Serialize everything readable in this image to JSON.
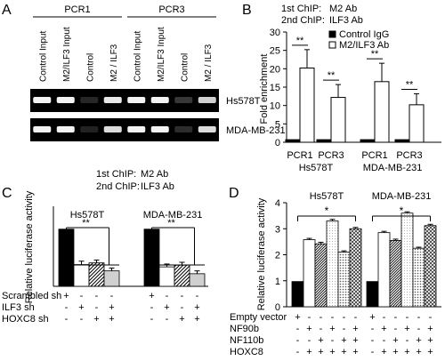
{
  "panels": {
    "A": {
      "letter": "A",
      "groups": [
        {
          "label": "PCR1"
        },
        {
          "label": "PCR3"
        }
      ],
      "lanes": [
        {
          "label": "Control Input"
        },
        {
          "label": "M2/ILF3 Input"
        },
        {
          "label": "Control"
        },
        {
          "label": "M2 / ILF3"
        },
        {
          "label": "Control Input"
        },
        {
          "label": "M2/ILF3 Input"
        },
        {
          "label": "Control"
        },
        {
          "label": "M2 / ILF3"
        }
      ],
      "rows": [
        {
          "label": "Hs578T",
          "intensity": [
            0.95,
            0.95,
            0.08,
            0.9,
            0.95,
            0.95,
            0.15,
            0.8
          ]
        },
        {
          "label": "MDA-MB-231",
          "intensity": [
            0.95,
            0.95,
            0.06,
            0.85,
            0.95,
            0.95,
            0.1,
            0.85
          ]
        }
      ],
      "chip_notes": [
        {
          "key": "1st ChIP:",
          "value": "M2 Ab"
        },
        {
          "key": "2nd ChIP:",
          "value": "ILF3 Ab"
        }
      ]
    },
    "B": {
      "letter": "B"
    },
    "C": {
      "letter": "C"
    },
    "D": {
      "letter": "D"
    }
  },
  "chart_data": [
    {
      "panel": "B",
      "type": "bar",
      "notes": [
        {
          "key": "1st ChIP:",
          "value": "M2 Ab"
        },
        {
          "key": "2nd ChIP:",
          "value": "ILF3 Ab"
        }
      ],
      "ylabel": "Fold enrichment",
      "ylim": [
        0,
        30
      ],
      "yticks": [
        0,
        5,
        10,
        15,
        20,
        25,
        30
      ],
      "legend": [
        "Control IgG",
        "M2/ILF3 Ab"
      ],
      "categories": [
        "PCR1",
        "PCR3",
        "PCR1",
        "PCR3"
      ],
      "cell_lines": [
        "Hs578T",
        "MDA-MB-231"
      ],
      "series": [
        {
          "name": "Control IgG",
          "color": "#000000",
          "values": [
            0.7,
            0.7,
            0.7,
            0.7
          ],
          "errors": [
            0,
            0,
            0,
            0
          ]
        },
        {
          "name": "M2/ILF3 Ab",
          "color": "#ffffff",
          "values": [
            20.2,
            12.2,
            16.5,
            10.2
          ],
          "errors": [
            5.0,
            3.5,
            5.0,
            3.0
          ]
        }
      ],
      "significance": [
        "**",
        "**",
        "**",
        "**"
      ]
    },
    {
      "panel": "C",
      "type": "bar",
      "ylabel": "Relative luciferase activity",
      "ylim": [
        0,
        1.4
      ],
      "groups": [
        {
          "title": "Hs578T",
          "values": [
            1.0,
            0.38,
            0.41,
            0.27
          ],
          "errors": [
            0,
            0.06,
            0.05,
            0.05
          ]
        },
        {
          "title": "MDA-MB-231",
          "values": [
            1.0,
            0.34,
            0.37,
            0.22
          ],
          "errors": [
            0,
            0.05,
            0.05,
            0.05
          ]
        }
      ],
      "bar_styles": [
        "black",
        "white",
        "hatched",
        "gray"
      ],
      "significance": "**",
      "conditions": [
        {
          "label": "Scrambled sh",
          "signs": [
            "+",
            "-",
            "-",
            "-"
          ]
        },
        {
          "label": "ILF3 sh",
          "signs": [
            "-",
            "+",
            "-",
            "+"
          ]
        },
        {
          "label": "HOXC8 sh",
          "signs": [
            "-",
            "-",
            "+",
            "+"
          ]
        }
      ]
    },
    {
      "panel": "D",
      "type": "bar",
      "ylabel": "Relative luciferase activity",
      "ylim": [
        0,
        4
      ],
      "yticks": [
        0,
        1,
        2,
        3,
        4
      ],
      "groups": [
        {
          "title": "Hs578T",
          "values": [
            0.97,
            2.58,
            2.42,
            3.3,
            2.1,
            3.0
          ],
          "errors": [
            0,
            0.05,
            0.06,
            0.06,
            0.05,
            0.05
          ]
        },
        {
          "title": "MDA-MB-231",
          "values": [
            0.97,
            2.85,
            2.55,
            3.6,
            2.25,
            3.12
          ],
          "errors": [
            0,
            0.05,
            0.05,
            0.05,
            0.04,
            0.05
          ]
        }
      ],
      "bar_styles": [
        "black",
        "white",
        "dense",
        "light",
        "dots",
        "cross"
      ],
      "significance": "*",
      "conditions": [
        {
          "label": "Empty vector",
          "signs": [
            "+",
            "-",
            "-",
            "-",
            "-",
            "-"
          ]
        },
        {
          "label": "NF90b",
          "signs": [
            "-",
            "+",
            "-",
            "+",
            "-",
            "+"
          ]
        },
        {
          "label": "NF110b",
          "signs": [
            "-",
            "-",
            "+",
            "-",
            "+",
            "+"
          ]
        },
        {
          "label": "HOXC8",
          "signs": [
            "-",
            "+",
            "+",
            "+",
            "+",
            "+"
          ]
        }
      ]
    }
  ]
}
